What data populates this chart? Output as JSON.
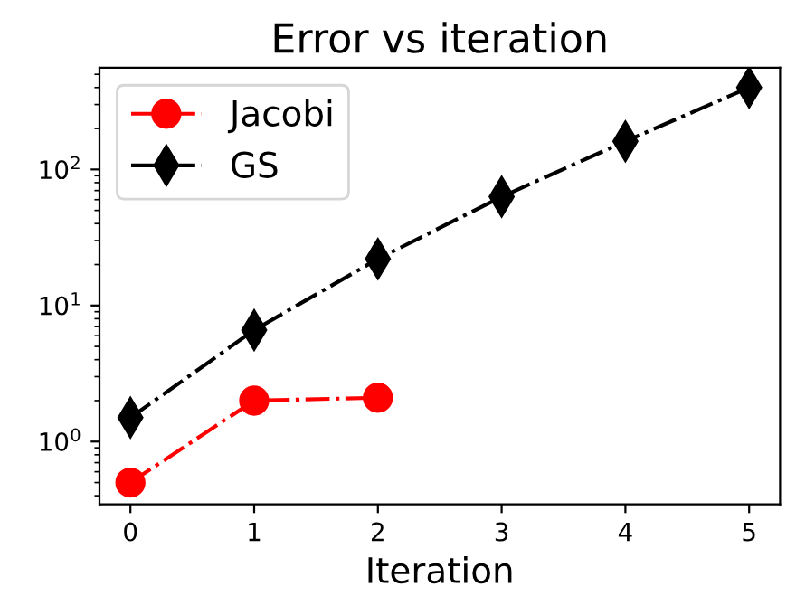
{
  "chart_data": {
    "type": "line",
    "title": "Error vs iteration",
    "xlabel": "Iteration",
    "x": [
      0,
      1,
      2,
      3,
      4,
      5
    ],
    "series": [
      {
        "name": "Jacobi",
        "color": "#ff0000",
        "marker": "circle",
        "values": [
          0.5,
          2.0,
          2.1,
          null,
          null,
          null
        ]
      },
      {
        "name": "GS",
        "color": "#000000",
        "marker": "diamond",
        "values": [
          1.5,
          6.6,
          22,
          63,
          161,
          400
        ]
      }
    ],
    "log": "y",
    "line_style": "dashdot",
    "xlim": [
      -0.25,
      5.25
    ],
    "xticks": [
      0,
      1,
      2,
      3,
      4,
      5
    ],
    "ylim": [
      0.346,
      560
    ],
    "yticks": [
      {
        "value": 1,
        "label": "10$^{0}$"
      },
      {
        "value": 10,
        "label": "10$^{1}$"
      },
      {
        "value": 100,
        "label": "10$^{2}$"
      }
    ],
    "grid": false,
    "legend": "top left"
  }
}
